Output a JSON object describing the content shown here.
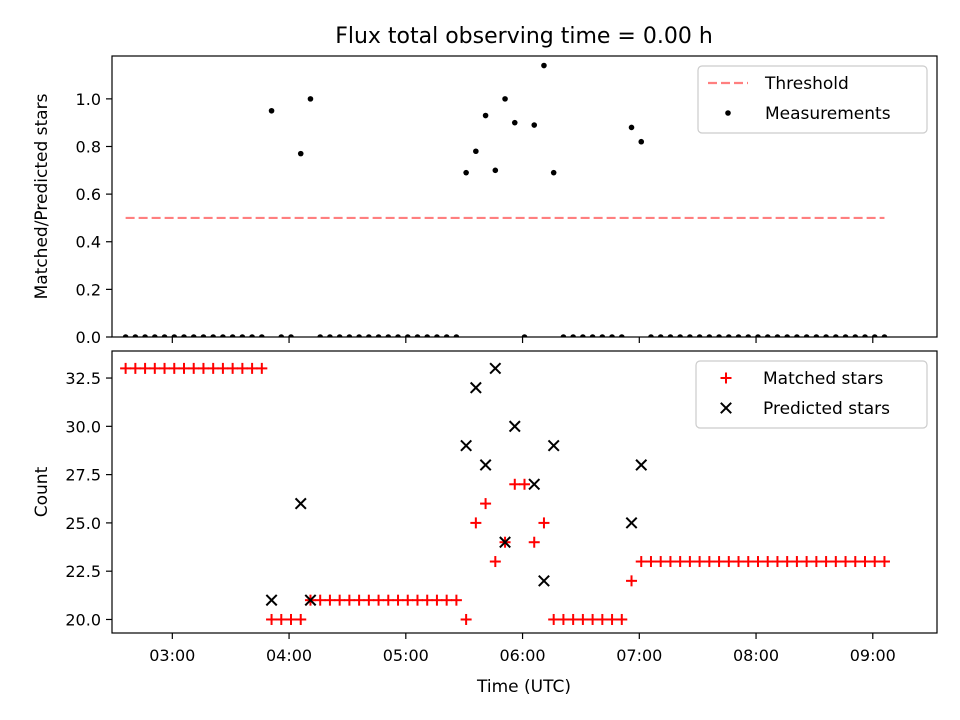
{
  "figure": {
    "title": "Flux total observing time = 0.00 h",
    "xlabel": "Time (UTC)",
    "x_tick_labels": [
      "03:00",
      "04:00",
      "05:00",
      "06:00",
      "07:00",
      "08:00",
      "09:00"
    ],
    "colors": {
      "threshold": "#ff7f7f",
      "measurements": "#000000",
      "matched": "#ff0000",
      "predicted": "#000000"
    }
  },
  "chart_data": [
    {
      "type": "scatter",
      "ylabel": "Matched/Predicted stars",
      "xlim": [
        "02:29",
        "09:33"
      ],
      "ylim": [
        0,
        1.18
      ],
      "y_ticks": [
        "0.0",
        "0.2",
        "0.4",
        "0.6",
        "0.8",
        "1.0"
      ],
      "legend": {
        "placement": "top-right",
        "entries": [
          "Threshold",
          "Measurements"
        ]
      },
      "threshold": {
        "name": "Threshold",
        "value": 0.5,
        "x_range": [
          "02:36",
          "09:06"
        ]
      },
      "measurements": {
        "name": "Measurements",
        "points": [
          [
            "02:36",
            0
          ],
          [
            "02:41",
            0
          ],
          [
            "02:46",
            0
          ],
          [
            "02:51",
            0
          ],
          [
            "02:56",
            0
          ],
          [
            "03:01",
            0
          ],
          [
            "03:06",
            0
          ],
          [
            "03:11",
            0
          ],
          [
            "03:16",
            0
          ],
          [
            "03:21",
            0
          ],
          [
            "03:26",
            0
          ],
          [
            "03:31",
            0
          ],
          [
            "03:36",
            0
          ],
          [
            "03:41",
            0
          ],
          [
            "03:46",
            0
          ],
          [
            "03:51",
            0.95
          ],
          [
            "03:56",
            0
          ],
          [
            "04:01",
            0
          ],
          [
            "04:06",
            0.77
          ],
          [
            "04:11",
            1.0
          ],
          [
            "04:16",
            0
          ],
          [
            "04:21",
            0
          ],
          [
            "04:26",
            0
          ],
          [
            "04:31",
            0
          ],
          [
            "04:36",
            0
          ],
          [
            "04:41",
            0
          ],
          [
            "04:46",
            0
          ],
          [
            "04:51",
            0
          ],
          [
            "04:56",
            0
          ],
          [
            "05:01",
            0
          ],
          [
            "05:06",
            0
          ],
          [
            "05:11",
            0
          ],
          [
            "05:16",
            0
          ],
          [
            "05:21",
            0
          ],
          [
            "05:26",
            0
          ],
          [
            "05:31",
            0.69
          ],
          [
            "05:36",
            0.78
          ],
          [
            "05:41",
            0.93
          ],
          [
            "05:46",
            0.7
          ],
          [
            "05:51",
            1.0
          ],
          [
            "05:56",
            0.9
          ],
          [
            "06:01",
            0
          ],
          [
            "06:06",
            0.89
          ],
          [
            "06:11",
            1.14
          ],
          [
            "06:16",
            0.69
          ],
          [
            "06:21",
            0
          ],
          [
            "06:26",
            0
          ],
          [
            "06:31",
            0
          ],
          [
            "06:36",
            0
          ],
          [
            "06:41",
            0
          ],
          [
            "06:46",
            0
          ],
          [
            "06:51",
            0
          ],
          [
            "06:56",
            0.88
          ],
          [
            "07:01",
            0.82
          ],
          [
            "07:06",
            0
          ],
          [
            "07:11",
            0
          ],
          [
            "07:16",
            0
          ],
          [
            "07:21",
            0
          ],
          [
            "07:26",
            0
          ],
          [
            "07:31",
            0
          ],
          [
            "07:36",
            0
          ],
          [
            "07:41",
            0
          ],
          [
            "07:46",
            0
          ],
          [
            "07:51",
            0
          ],
          [
            "07:56",
            0
          ],
          [
            "08:01",
            0
          ],
          [
            "08:06",
            0
          ],
          [
            "08:11",
            0
          ],
          [
            "08:16",
            0
          ],
          [
            "08:21",
            0
          ],
          [
            "08:26",
            0
          ],
          [
            "08:31",
            0
          ],
          [
            "08:36",
            0
          ],
          [
            "08:41",
            0
          ],
          [
            "08:46",
            0
          ],
          [
            "08:51",
            0
          ],
          [
            "08:56",
            0
          ],
          [
            "09:01",
            0
          ],
          [
            "09:06",
            0
          ]
        ]
      }
    },
    {
      "type": "scatter",
      "ylabel": "Count",
      "xlim": [
        "02:29",
        "09:33"
      ],
      "ylim": [
        19.3,
        33.9
      ],
      "y_ticks": [
        "20.0",
        "22.5",
        "25.0",
        "27.5",
        "30.0",
        "32.5"
      ],
      "legend": {
        "placement": "top-right",
        "entries": [
          "Matched stars",
          "Predicted stars"
        ]
      },
      "series": [
        {
          "name": "Matched stars",
          "marker": "+",
          "points": [
            [
              "02:36",
              33
            ],
            [
              "02:41",
              33
            ],
            [
              "02:46",
              33
            ],
            [
              "02:51",
              33
            ],
            [
              "02:56",
              33
            ],
            [
              "03:01",
              33
            ],
            [
              "03:06",
              33
            ],
            [
              "03:11",
              33
            ],
            [
              "03:16",
              33
            ],
            [
              "03:21",
              33
            ],
            [
              "03:26",
              33
            ],
            [
              "03:31",
              33
            ],
            [
              "03:36",
              33
            ],
            [
              "03:41",
              33
            ],
            [
              "03:46",
              33
            ],
            [
              "03:51",
              20
            ],
            [
              "03:56",
              20
            ],
            [
              "04:01",
              20
            ],
            [
              "04:06",
              20
            ],
            [
              "04:11",
              21
            ],
            [
              "04:16",
              21
            ],
            [
              "04:21",
              21
            ],
            [
              "04:26",
              21
            ],
            [
              "04:31",
              21
            ],
            [
              "04:36",
              21
            ],
            [
              "04:41",
              21
            ],
            [
              "04:46",
              21
            ],
            [
              "04:51",
              21
            ],
            [
              "04:56",
              21
            ],
            [
              "05:01",
              21
            ],
            [
              "05:06",
              21
            ],
            [
              "05:11",
              21
            ],
            [
              "05:16",
              21
            ],
            [
              "05:21",
              21
            ],
            [
              "05:26",
              21
            ],
            [
              "05:31",
              20
            ],
            [
              "05:36",
              25
            ],
            [
              "05:41",
              26
            ],
            [
              "05:46",
              23
            ],
            [
              "05:51",
              24
            ],
            [
              "05:56",
              27
            ],
            [
              "06:01",
              27
            ],
            [
              "06:06",
              24
            ],
            [
              "06:11",
              25
            ],
            [
              "06:16",
              20
            ],
            [
              "06:21",
              20
            ],
            [
              "06:26",
              20
            ],
            [
              "06:31",
              20
            ],
            [
              "06:36",
              20
            ],
            [
              "06:41",
              20
            ],
            [
              "06:46",
              20
            ],
            [
              "06:51",
              20
            ],
            [
              "06:56",
              22
            ],
            [
              "07:01",
              23
            ],
            [
              "07:06",
              23
            ],
            [
              "07:11",
              23
            ],
            [
              "07:16",
              23
            ],
            [
              "07:21",
              23
            ],
            [
              "07:26",
              23
            ],
            [
              "07:31",
              23
            ],
            [
              "07:36",
              23
            ],
            [
              "07:41",
              23
            ],
            [
              "07:46",
              23
            ],
            [
              "07:51",
              23
            ],
            [
              "07:56",
              23
            ],
            [
              "08:01",
              23
            ],
            [
              "08:06",
              23
            ],
            [
              "08:11",
              23
            ],
            [
              "08:16",
              23
            ],
            [
              "08:21",
              23
            ],
            [
              "08:26",
              23
            ],
            [
              "08:31",
              23
            ],
            [
              "08:36",
              23
            ],
            [
              "08:41",
              23
            ],
            [
              "08:46",
              23
            ],
            [
              "08:51",
              23
            ],
            [
              "08:56",
              23
            ],
            [
              "09:01",
              23
            ],
            [
              "09:06",
              23
            ]
          ]
        },
        {
          "name": "Predicted stars",
          "marker": "x",
          "points": [
            [
              "03:51",
              21
            ],
            [
              "04:06",
              26
            ],
            [
              "04:11",
              21
            ],
            [
              "05:31",
              29
            ],
            [
              "05:36",
              32
            ],
            [
              "05:41",
              28
            ],
            [
              "05:46",
              33
            ],
            [
              "05:51",
              24
            ],
            [
              "05:56",
              30
            ],
            [
              "06:06",
              27
            ],
            [
              "06:11",
              22
            ],
            [
              "06:16",
              29
            ],
            [
              "06:56",
              25
            ],
            [
              "07:01",
              28
            ]
          ]
        }
      ]
    }
  ]
}
